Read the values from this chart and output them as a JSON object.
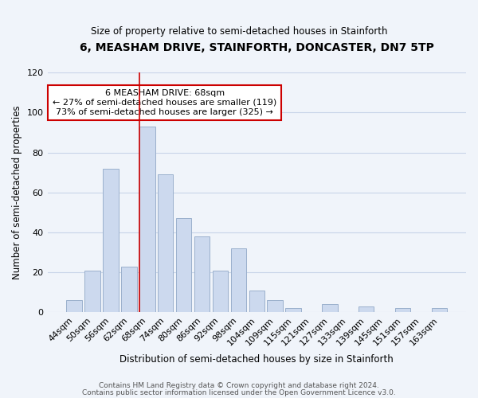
{
  "title": "6, MEASHAM DRIVE, STAINFORTH, DONCASTER, DN7 5TP",
  "subtitle": "Size of property relative to semi-detached houses in Stainforth",
  "xlabel": "Distribution of semi-detached houses by size in Stainforth",
  "ylabel": "Number of semi-detached properties",
  "bar_color": "#ccd9ee",
  "bar_edge_color": "#9ab0cc",
  "categories": [
    "44sqm",
    "50sqm",
    "56sqm",
    "62sqm",
    "68sqm",
    "74sqm",
    "80sqm",
    "86sqm",
    "92sqm",
    "98sqm",
    "104sqm",
    "109sqm",
    "115sqm",
    "121sqm",
    "127sqm",
    "133sqm",
    "139sqm",
    "145sqm",
    "151sqm",
    "157sqm",
    "163sqm"
  ],
  "values": [
    6,
    21,
    72,
    23,
    93,
    69,
    47,
    38,
    21,
    32,
    11,
    6,
    2,
    0,
    4,
    0,
    3,
    0,
    2,
    0,
    2
  ],
  "highlight_index": 4,
  "annotation_title": "6 MEASHAM DRIVE: 68sqm",
  "annotation_line1": "← 27% of semi-detached houses are smaller (119)",
  "annotation_line2": "73% of semi-detached houses are larger (325) →",
  "annotation_box_color": "#ffffff",
  "annotation_box_edge": "#cc0000",
  "vline_color": "#cc0000",
  "ylim": [
    0,
    120
  ],
  "yticks": [
    0,
    20,
    40,
    60,
    80,
    100,
    120
  ],
  "footer1": "Contains HM Land Registry data © Crown copyright and database right 2024.",
  "footer2": "Contains public sector information licensed under the Open Government Licence v3.0.",
  "background_color": "#f0f4fa",
  "grid_color": "#c8d4e8"
}
